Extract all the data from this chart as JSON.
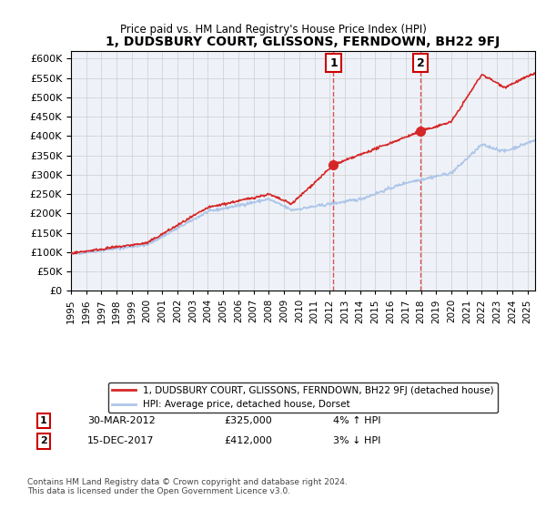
{
  "title": "1, DUDSBURY COURT, GLISSONS, FERNDOWN, BH22 9FJ",
  "subtitle": "Price paid vs. HM Land Registry's House Price Index (HPI)",
  "ylim": [
    0,
    620000
  ],
  "yticks": [
    0,
    50000,
    100000,
    150000,
    200000,
    250000,
    300000,
    350000,
    400000,
    450000,
    500000,
    550000,
    600000
  ],
  "xlim_start": 1995.0,
  "xlim_end": 2025.5,
  "xticks": [
    1995,
    1996,
    1997,
    1998,
    1999,
    2000,
    2001,
    2002,
    2003,
    2004,
    2005,
    2006,
    2007,
    2008,
    2009,
    2010,
    2011,
    2012,
    2013,
    2014,
    2015,
    2016,
    2017,
    2018,
    2019,
    2020,
    2021,
    2022,
    2023,
    2024,
    2025
  ],
  "hpi_color": "#aec6e8",
  "price_color": "#d62728",
  "sale1_x": 2012.25,
  "sale1_y": 325000,
  "sale2_x": 2017.96,
  "sale2_y": 412000,
  "sale1_label": "30-MAR-2012",
  "sale1_price": "£325,000",
  "sale1_hpi": "4% ↑ HPI",
  "sale2_label": "15-DEC-2017",
  "sale2_price": "£412,000",
  "sale2_hpi": "3% ↓ HPI",
  "legend_property": "1, DUDSBURY COURT, GLISSONS, FERNDOWN, BH22 9FJ (detached house)",
  "legend_hpi": "HPI: Average price, detached house, Dorset",
  "footnote": "Contains HM Land Registry data © Crown copyright and database right 2024.\nThis data is licensed under the Open Government Licence v3.0.",
  "background_color": "#eef2f8",
  "plot_bg_color": "#ffffff"
}
